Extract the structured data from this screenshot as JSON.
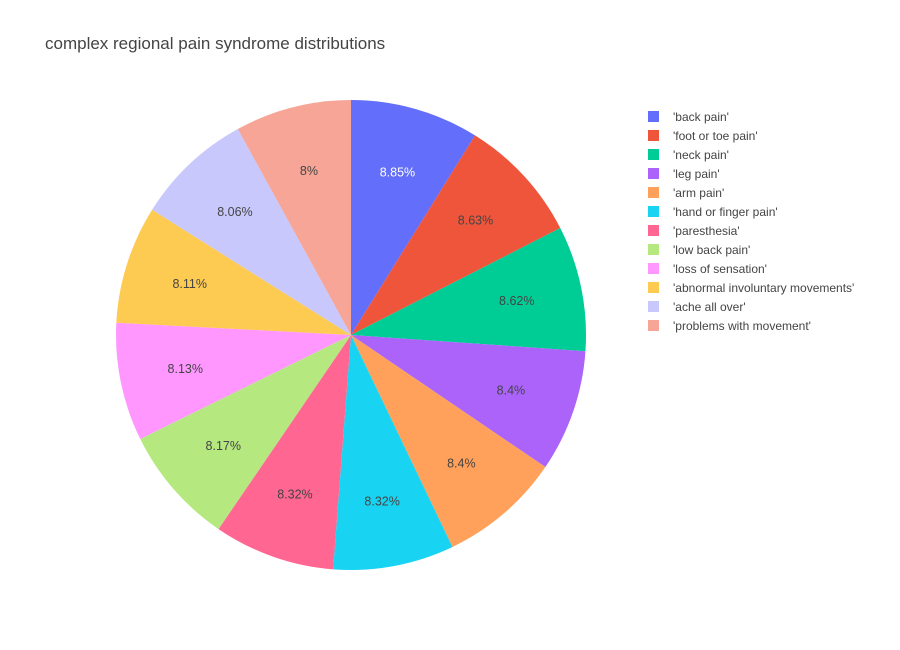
{
  "chart_data": {
    "type": "pie",
    "title": "complex regional pain syndrome distributions",
    "legend_position": "right",
    "slices": [
      {
        "label": "'back pain'",
        "value": 8.85,
        "display": "8.85%",
        "color": "#636efa",
        "text_color": "#ffffff"
      },
      {
        "label": "'foot or toe pain'",
        "value": 8.63,
        "display": "8.63%",
        "color": "#ef553b",
        "text_color": "#444444"
      },
      {
        "label": "'neck pain'",
        "value": 8.62,
        "display": "8.62%",
        "color": "#00cc96",
        "text_color": "#444444"
      },
      {
        "label": "'leg pain'",
        "value": 8.4,
        "display": "8.4%",
        "color": "#ab63fa",
        "text_color": "#444444"
      },
      {
        "label": "'arm pain'",
        "value": 8.4,
        "display": "8.4%",
        "color": "#ffa15a",
        "text_color": "#444444"
      },
      {
        "label": "'hand or finger pain'",
        "value": 8.32,
        "display": "8.32%",
        "color": "#19d3f3",
        "text_color": "#444444"
      },
      {
        "label": "'paresthesia'",
        "value": 8.32,
        "display": "8.32%",
        "color": "#ff6692",
        "text_color": "#444444"
      },
      {
        "label": "'low back pain'",
        "value": 8.17,
        "display": "8.17%",
        "color": "#b6e880",
        "text_color": "#444444"
      },
      {
        "label": "'loss of sensation'",
        "value": 8.13,
        "display": "8.13%",
        "color": "#ff97ff",
        "text_color": "#444444"
      },
      {
        "label": "'abnormal involuntary movements'",
        "value": 8.11,
        "display": "8.11%",
        "color": "#fecb52",
        "text_color": "#444444"
      },
      {
        "label": "'ache all over'",
        "value": 8.06,
        "display": "8.06%",
        "color": "#c8c8fc",
        "text_color": "#444444"
      },
      {
        "label": "'problems with movement'",
        "value": 8.0,
        "display": "8%",
        "color": "#f6a597",
        "text_color": "#444444"
      }
    ]
  }
}
